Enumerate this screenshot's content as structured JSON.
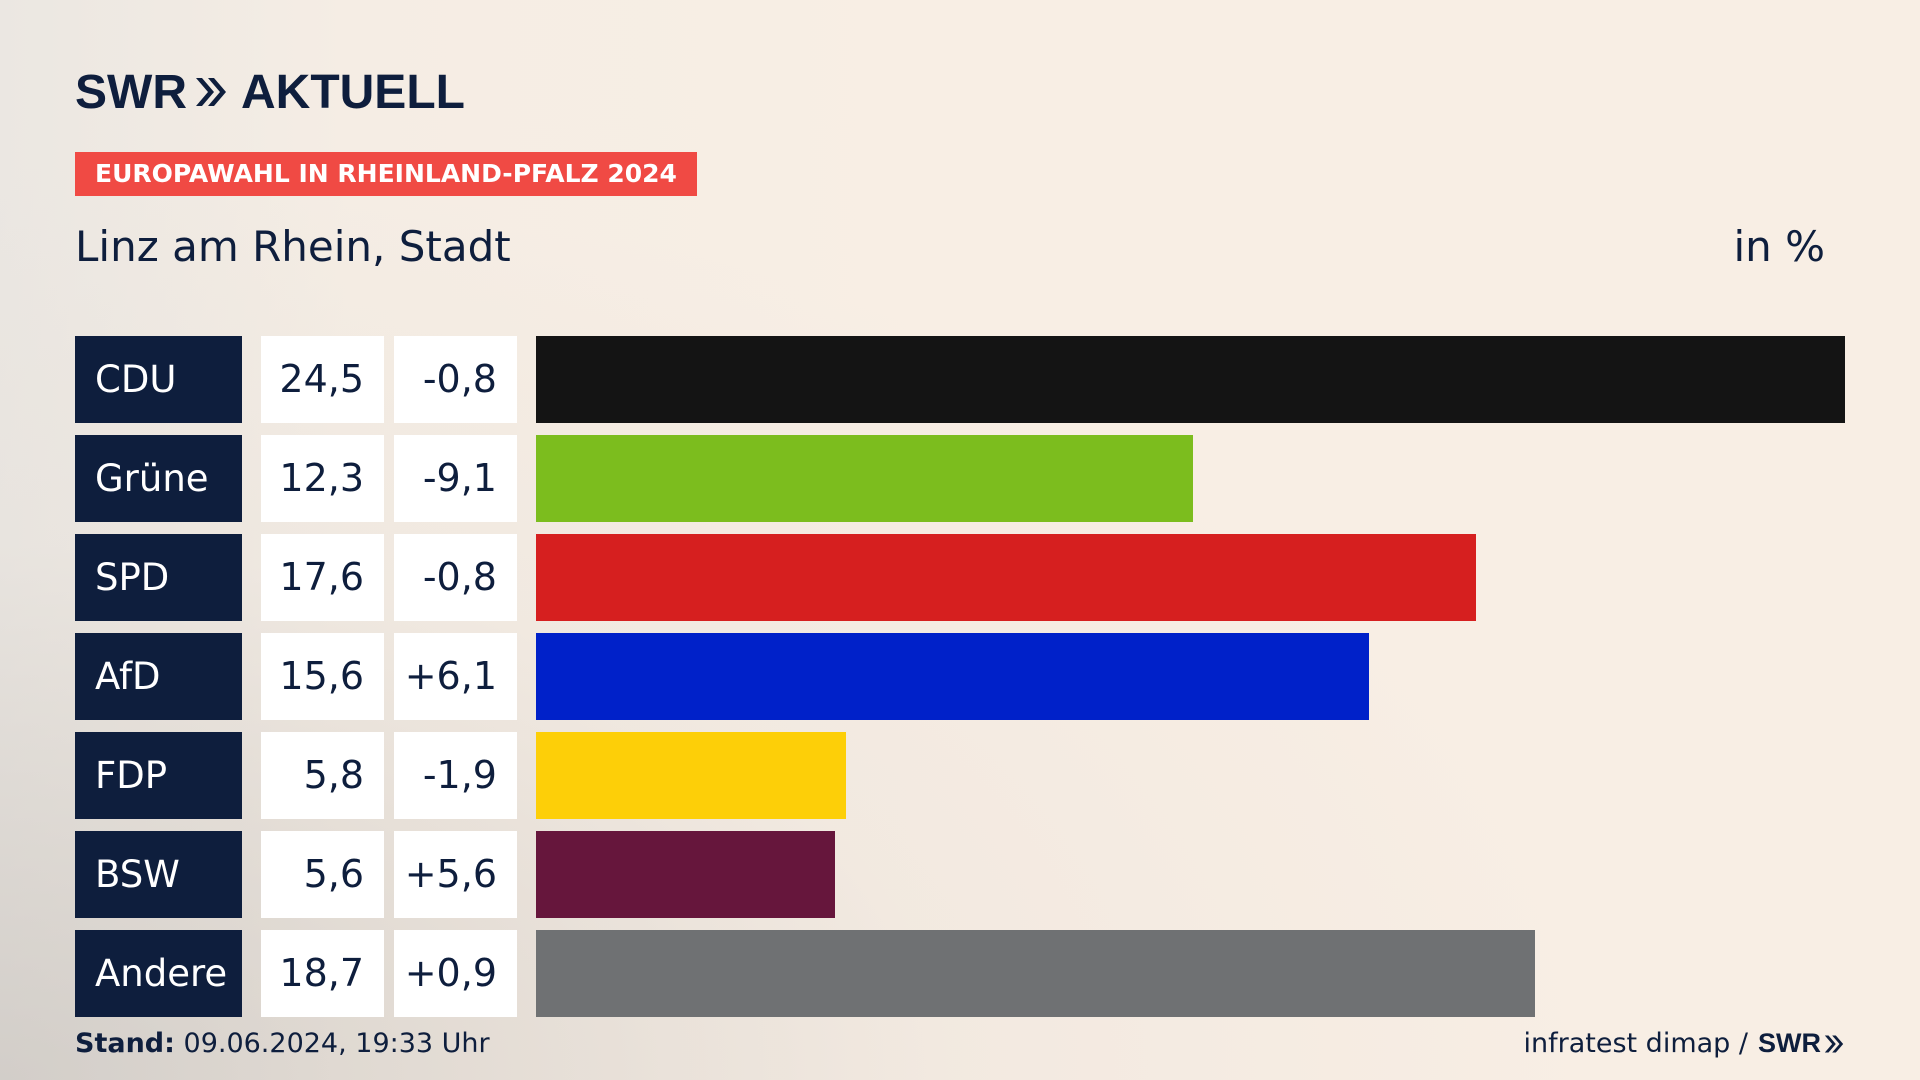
{
  "logo": {
    "brand": "SWR",
    "product": "AKTUELL"
  },
  "badge": "EUROPAWAHL IN RHEINLAND-PFALZ 2024",
  "region_title": "Linz am Rhein, Stadt",
  "unit_label": "in %",
  "colors": {
    "navy": "#0e1e3d",
    "badge": "#f04a44"
  },
  "chart_data": {
    "type": "bar",
    "orientation": "horizontal",
    "unit": "%",
    "xlim": [
      0,
      24.5
    ],
    "categories": [
      "CDU",
      "Grüne",
      "SPD",
      "AfD",
      "FDP",
      "BSW",
      "Andere"
    ],
    "values": [
      24.5,
      12.3,
      17.6,
      15.6,
      5.8,
      5.6,
      18.7
    ],
    "value_labels": [
      "24,5",
      "12,3",
      "17,6",
      "15,6",
      "5,8",
      "5,6",
      "18,7"
    ],
    "diffs": [
      -0.8,
      -9.1,
      -0.8,
      6.1,
      -1.9,
      5.6,
      0.9
    ],
    "diff_labels": [
      "-0,8",
      "-9,1",
      "-0,8",
      "+6,1",
      "-1,9",
      "+5,6",
      "+0,9"
    ],
    "bar_colors": [
      "#141414",
      "#7cbd1e",
      "#d61f1f",
      "#0021c9",
      "#fdcf08",
      "#66163c",
      "#6f7173"
    ]
  },
  "footer": {
    "stand_label": "Stand:",
    "stand_value": "09.06.2024, 19:33 Uhr",
    "source": "infratest dimap /",
    "source_brand": "SWR"
  }
}
